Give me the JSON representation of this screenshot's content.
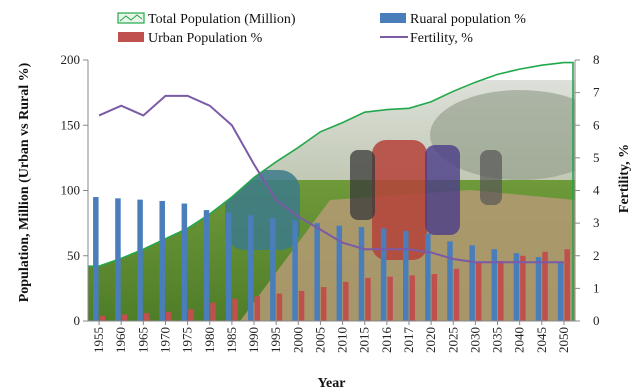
{
  "chart_data": {
    "type": "bar",
    "title": "",
    "xlabel": "Year",
    "ylabel_left": "Population, Million (Urban vs Rural %)",
    "ylabel_right": "Fertility, %",
    "ylim_left": [
      0,
      200
    ],
    "ylim_right": [
      0,
      8
    ],
    "yticks_left": [
      "0",
      "50",
      "100",
      "150",
      "200"
    ],
    "yticks_right": [
      "0",
      "1",
      "2",
      "3",
      "4",
      "5",
      "6",
      "7",
      "8"
    ],
    "legend_position": "top",
    "grid": false,
    "categories": [
      "1955",
      "1960",
      "1965",
      "1970",
      "1975",
      "1980",
      "1985",
      "1990",
      "1995",
      "2000",
      "2005",
      "2010",
      "2015",
      "2016",
      "2017",
      "2020",
      "2025",
      "2030",
      "2035",
      "2040",
      "2045",
      "2050"
    ],
    "series": [
      {
        "name": "Total Population (Million)",
        "kind": "area",
        "axis": "left",
        "color": "#22a84a",
        "values": [
          42,
          48,
          55,
          63,
          71,
          82,
          95,
          110,
          122,
          133,
          145,
          152,
          160,
          162,
          163,
          168,
          176,
          183,
          189,
          193,
          196,
          198
        ]
      },
      {
        "name": "Ruaral population %",
        "kind": "bar",
        "axis": "left",
        "color": "#4a7ebb",
        "values": [
          95,
          94,
          93,
          92,
          90,
          85,
          83,
          81,
          79,
          77,
          75,
          73,
          72,
          71,
          69,
          67,
          61,
          58,
          55,
          52,
          49,
          45
        ]
      },
      {
        "name": "Urban Population %",
        "kind": "bar",
        "axis": "left",
        "color": "#c0504d",
        "values": [
          4,
          5,
          6,
          7,
          9,
          14,
          17,
          19,
          21,
          23,
          26,
          30,
          33,
          34,
          35,
          36,
          40,
          45,
          46,
          50,
          53,
          55
        ]
      },
      {
        "name": "Fertility, %",
        "kind": "line",
        "axis": "right",
        "color": "#7b5aa6",
        "values": [
          6.3,
          6.6,
          6.3,
          6.9,
          6.9,
          6.6,
          6.0,
          4.8,
          3.7,
          3.2,
          2.8,
          2.4,
          2.2,
          2.2,
          2.2,
          2.1,
          1.9,
          1.8,
          1.8,
          1.8,
          1.8,
          1.8
        ]
      }
    ]
  }
}
